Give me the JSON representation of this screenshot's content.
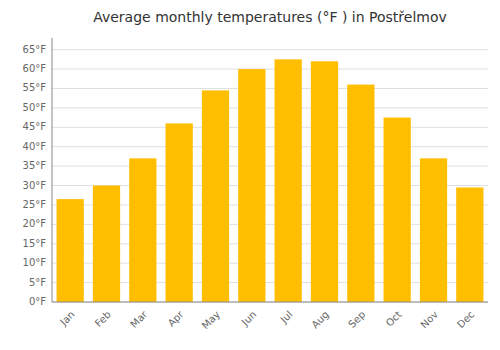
{
  "chart_data": {
    "type": "bar",
    "title": "Average monthly temperatures (°F ) in Postřelmov",
    "categories": [
      "Jan",
      "Feb",
      "Mar",
      "Apr",
      "May",
      "Jun",
      "Jul",
      "Aug",
      "Sep",
      "Oct",
      "Nov",
      "Dec"
    ],
    "values": [
      26.5,
      30,
      37,
      46,
      54.5,
      60,
      62.5,
      62,
      56,
      47.5,
      37,
      29.5
    ],
    "color": "#FFBE00",
    "ylim": [
      0,
      68
    ],
    "yticks": [
      {
        "value": 0,
        "label": "0°F"
      },
      {
        "value": 5,
        "label": "5°F"
      },
      {
        "value": 10,
        "label": "10°F"
      },
      {
        "value": 15,
        "label": "15°F"
      },
      {
        "value": 20,
        "label": "20°F"
      },
      {
        "value": 25,
        "label": "25°F"
      },
      {
        "value": 30,
        "label": "30°F"
      },
      {
        "value": 35,
        "label": "35°F"
      },
      {
        "value": 40,
        "label": "40°F"
      },
      {
        "value": 45,
        "label": "45°F"
      },
      {
        "value": 50,
        "label": "50°F"
      },
      {
        "value": 55,
        "label": "55°F"
      },
      {
        "value": 60,
        "label": "60°F"
      },
      {
        "value": 65,
        "label": "65°F"
      }
    ],
    "grid": true
  }
}
